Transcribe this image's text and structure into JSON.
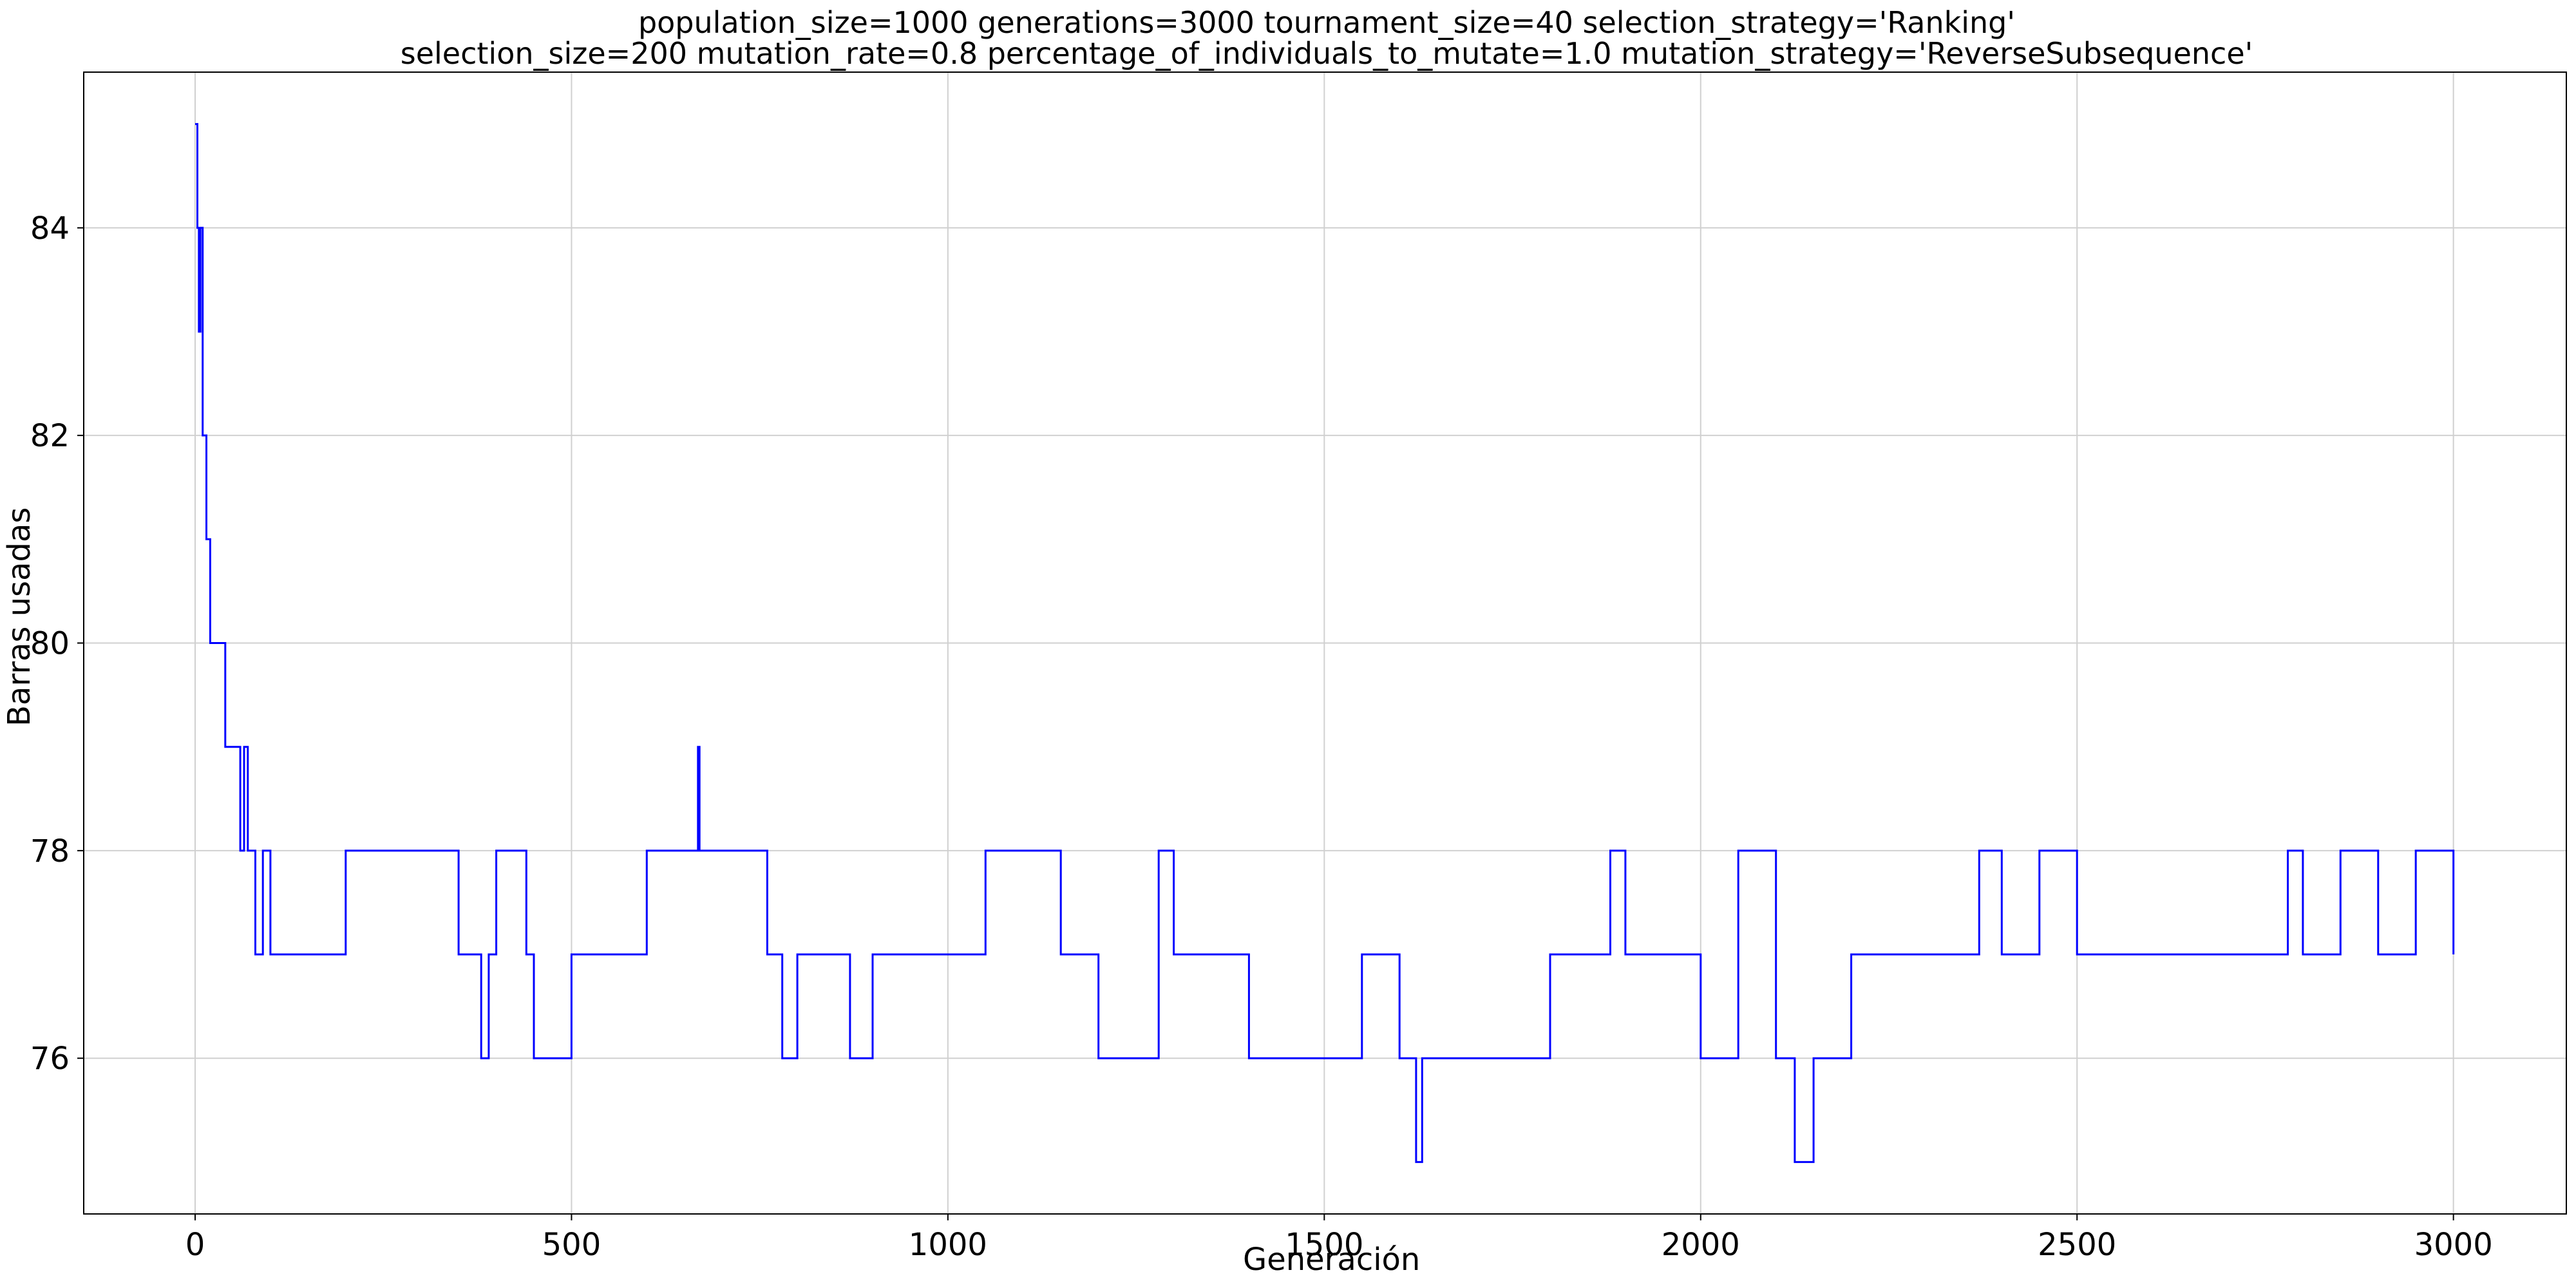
{
  "chart_data": {
    "type": "line",
    "title": [
      "population_size=1000 generations=3000 tournament_size=40 selection_strategy='Ranking'",
      "selection_size=200 mutation_rate=0.8 percentage_of_individuals_to_mutate=1.0 mutation_strategy='ReverseSubsequence'"
    ],
    "xlabel": "Generación",
    "ylabel": "Barras usadas",
    "xlim": [
      -148,
      3150
    ],
    "ylim": [
      74.5,
      85.5
    ],
    "xticks": [
      0,
      500,
      1000,
      1500,
      2000,
      2500,
      3000
    ],
    "yticks": [
      76,
      78,
      80,
      82,
      84
    ],
    "grid": true,
    "series": [
      {
        "color": "#0000ff",
        "x": [
          0,
          3,
          5,
          7,
          10,
          15,
          20,
          30,
          40,
          50,
          60,
          65,
          70,
          80,
          90,
          100,
          150,
          200,
          250,
          300,
          350,
          380,
          390,
          400,
          420,
          440,
          450,
          500,
          600,
          668,
          670,
          700,
          760,
          780,
          800,
          850,
          870,
          900,
          950,
          1000,
          1050,
          1100,
          1130,
          1150,
          1200,
          1280,
          1300,
          1400,
          1500,
          1550,
          1600,
          1622,
          1630,
          1700,
          1800,
          1880,
          1900,
          1950,
          2000,
          2050,
          2100,
          2125,
          2150,
          2200,
          2300,
          2370,
          2400,
          2450,
          2500,
          2600,
          2700,
          2780,
          2800,
          2850,
          2900,
          2950,
          3000
        ],
        "y": [
          85,
          84,
          83,
          84,
          82,
          81,
          80,
          80,
          79,
          79,
          78,
          79,
          78,
          77,
          78,
          77,
          77,
          78,
          78,
          78,
          77,
          76,
          77,
          78,
          78,
          77,
          76,
          77,
          78,
          79,
          78,
          78,
          77,
          76,
          77,
          77,
          76,
          77,
          77,
          77,
          78,
          78,
          78,
          77,
          76,
          78,
          77,
          76,
          76,
          77,
          76,
          75,
          76,
          76,
          77,
          78,
          77,
          77,
          76,
          78,
          76,
          75,
          76,
          77,
          77,
          78,
          77,
          78,
          77,
          77,
          77,
          78,
          77,
          78,
          77,
          78,
          77
        ]
      }
    ]
  }
}
